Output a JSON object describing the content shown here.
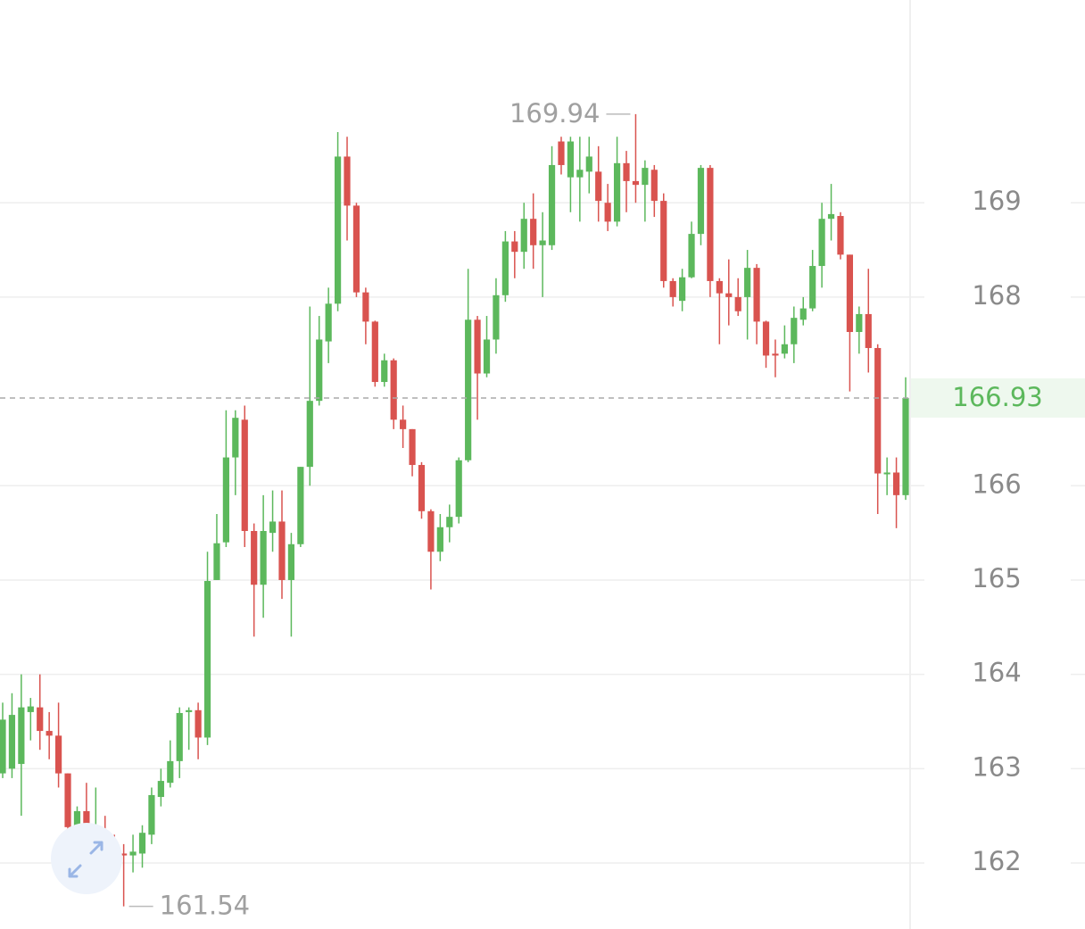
{
  "chart_data": {
    "type": "candlestick",
    "up_color": "#5cb85c",
    "down_color": "#d9534f",
    "ylim": [
      161.3,
      171.15
    ],
    "yticks": [
      162,
      163,
      164,
      165,
      166,
      168,
      169
    ],
    "grid": true,
    "open": [
      162.95,
      163.0,
      163.05,
      163.6,
      163.65,
      163.4,
      163.35,
      162.95,
      162.38,
      162.55,
      162.3,
      162.33,
      162.15,
      162.1,
      162.08,
      162.1,
      162.3,
      162.7,
      162.85,
      163.08,
      163.6,
      163.62,
      163.33,
      165.0,
      165.4,
      166.3,
      166.7,
      165.52,
      164.95,
      165.5,
      165.62,
      165.0,
      165.38,
      166.2,
      166.9,
      167.53,
      167.93,
      169.49,
      168.97,
      168.05,
      167.74,
      167.1,
      167.33,
      166.7,
      166.6,
      166.22,
      165.73,
      165.3,
      165.56,
      165.67,
      166.27,
      167.76,
      167.19,
      167.55,
      168.02,
      168.59,
      168.48,
      168.83,
      168.55,
      168.55,
      169.65,
      169.27,
      169.27,
      169.33,
      169.33,
      169.0,
      168.8,
      169.42,
      169.23,
      169.19,
      169.35,
      169.02,
      168.17,
      167.96,
      168.21,
      168.67,
      169.37,
      168.17,
      168.04,
      168.0,
      168.0,
      168.31,
      167.74,
      167.4,
      167.4,
      167.5,
      167.76,
      167.88,
      168.33,
      168.83,
      168.86,
      168.45,
      167.63,
      167.82,
      167.46,
      166.13,
      166.14,
      165.9
    ],
    "high": [
      163.7,
      163.8,
      164.0,
      163.75,
      164.0,
      163.6,
      163.7,
      162.95,
      162.6,
      162.85,
      162.8,
      162.5,
      162.3,
      162.2,
      162.3,
      162.4,
      162.8,
      163.0,
      163.3,
      163.65,
      163.65,
      163.7,
      165.3,
      165.7,
      166.8,
      166.8,
      166.85,
      165.6,
      165.9,
      165.95,
      165.95,
      165.5,
      166.2,
      167.9,
      167.8,
      168.1,
      169.75,
      169.7,
      169.0,
      168.1,
      167.75,
      167.4,
      167.35,
      166.85,
      166.6,
      166.25,
      165.75,
      165.7,
      165.8,
      166.3,
      168.3,
      167.8,
      167.8,
      168.2,
      168.7,
      168.7,
      169.0,
      169.1,
      168.9,
      169.6,
      169.7,
      169.7,
      169.7,
      169.7,
      169.6,
      169.2,
      169.7,
      169.55,
      169.94,
      169.45,
      169.4,
      169.1,
      168.2,
      168.3,
      168.8,
      169.4,
      169.4,
      168.2,
      168.4,
      168.2,
      168.5,
      168.35,
      167.75,
      167.55,
      167.7,
      167.9,
      168.0,
      168.5,
      169.0,
      169.2,
      168.9,
      168.45,
      167.9,
      168.3,
      167.5,
      166.3,
      166.3,
      167.15
    ],
    "low": [
      162.9,
      162.9,
      162.5,
      163.3,
      163.2,
      163.1,
      162.8,
      162.35,
      162.0,
      162.15,
      162.2,
      161.9,
      161.9,
      161.54,
      161.9,
      161.95,
      162.2,
      162.6,
      162.8,
      162.9,
      163.2,
      163.1,
      163.25,
      165.0,
      165.35,
      165.9,
      165.35,
      164.4,
      164.6,
      165.3,
      164.8,
      164.4,
      165.35,
      166.0,
      166.85,
      167.3,
      167.85,
      168.6,
      168.0,
      167.5,
      167.05,
      167.05,
      166.6,
      166.4,
      166.1,
      165.65,
      164.9,
      165.2,
      165.4,
      165.6,
      166.25,
      166.7,
      167.15,
      167.4,
      167.95,
      168.2,
      168.3,
      168.3,
      168.0,
      168.5,
      169.3,
      168.9,
      168.8,
      169.1,
      168.8,
      168.7,
      168.75,
      168.9,
      169.0,
      168.8,
      168.85,
      168.1,
      167.9,
      167.85,
      168.2,
      168.55,
      168.0,
      167.5,
      167.7,
      167.8,
      167.55,
      167.5,
      167.25,
      167.15,
      167.35,
      167.3,
      167.7,
      167.85,
      168.1,
      168.6,
      168.4,
      167.0,
      167.4,
      167.2,
      165.7,
      165.9,
      165.55,
      165.85
    ],
    "close": [
      163.52,
      163.57,
      163.65,
      163.66,
      163.4,
      163.35,
      162.95,
      162.38,
      162.55,
      162.3,
      162.33,
      162.15,
      162.1,
      162.08,
      162.12,
      162.32,
      162.72,
      162.87,
      163.08,
      163.59,
      163.62,
      163.33,
      164.99,
      165.39,
      166.3,
      166.72,
      165.52,
      164.95,
      165.52,
      165.62,
      165.0,
      165.38,
      166.2,
      166.9,
      167.55,
      167.93,
      169.49,
      168.97,
      168.05,
      167.74,
      167.1,
      167.33,
      166.7,
      166.6,
      166.22,
      165.73,
      165.3,
      165.56,
      165.67,
      166.27,
      167.76,
      167.19,
      167.55,
      168.02,
      168.59,
      168.48,
      168.83,
      168.55,
      168.6,
      169.4,
      169.4,
      169.65,
      169.35,
      169.49,
      169.02,
      168.8,
      169.42,
      169.23,
      169.19,
      169.37,
      169.02,
      168.17,
      168.0,
      168.21,
      168.67,
      169.37,
      168.17,
      168.04,
      168.0,
      167.85,
      168.31,
      167.74,
      167.38,
      167.38,
      167.5,
      167.78,
      167.88,
      168.33,
      168.83,
      168.88,
      168.45,
      167.63,
      167.82,
      167.46,
      166.13,
      166.14,
      165.9,
      166.93
    ],
    "annotations": [
      {
        "text": "169.94",
        "value": 169.94
      },
      {
        "text": "161.54",
        "value": 161.54
      }
    ],
    "last_price": {
      "value": 166.93,
      "label": "166.93"
    }
  }
}
